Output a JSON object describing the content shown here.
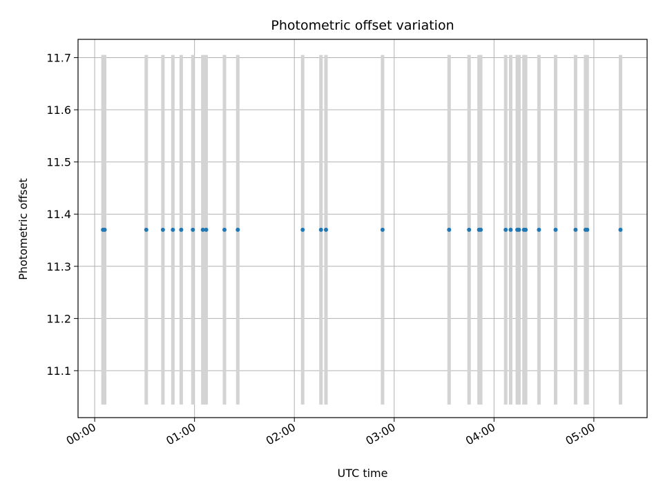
{
  "chart_data": {
    "type": "scatter",
    "title": "Photometric offset variation",
    "xlabel": "UTC time",
    "ylabel": "Photometric offset",
    "xlim": [
      "23:50",
      "05:32"
    ],
    "ylim": [
      11.01,
      11.735
    ],
    "x_ticks": [
      "00:00",
      "01:00",
      "02:00",
      "03:00",
      "04:00",
      "05:00"
    ],
    "y_ticks": [
      "11.1",
      "11.2",
      "11.3",
      "11.4",
      "11.5",
      "11.6",
      "11.7"
    ],
    "y_tick_values": [
      11.1,
      11.2,
      11.3,
      11.4,
      11.5,
      11.6,
      11.7
    ],
    "grid": true,
    "colors": {
      "points": "#1f77b4",
      "error_bars": "#d3d3d3",
      "grid": "#b0b0b0"
    },
    "series": [
      {
        "x": [
          "00:05",
          "00:06",
          "00:31",
          "00:41",
          "00:47",
          "00:52",
          "00:59",
          "01:05",
          "01:07",
          "01:18",
          "01:26",
          "02:05",
          "02:16",
          "02:19",
          "02:53",
          "03:33",
          "03:45",
          "03:51",
          "03:52",
          "04:07",
          "04:10",
          "04:14",
          "04:15",
          "04:18",
          "04:19",
          "04:27",
          "04:37",
          "04:49",
          "04:55",
          "04:56",
          "05:16"
        ],
        "y": [
          11.37,
          11.37,
          11.37,
          11.37,
          11.37,
          11.37,
          11.37,
          11.37,
          11.37,
          11.37,
          11.37,
          11.37,
          11.37,
          11.37,
          11.37,
          11.37,
          11.37,
          11.37,
          11.37,
          11.37,
          11.37,
          11.37,
          11.37,
          11.37,
          11.37,
          11.37,
          11.37,
          11.37,
          11.37,
          11.37,
          11.37
        ],
        "yerr_range": [
          11.035,
          11.705
        ]
      }
    ]
  }
}
